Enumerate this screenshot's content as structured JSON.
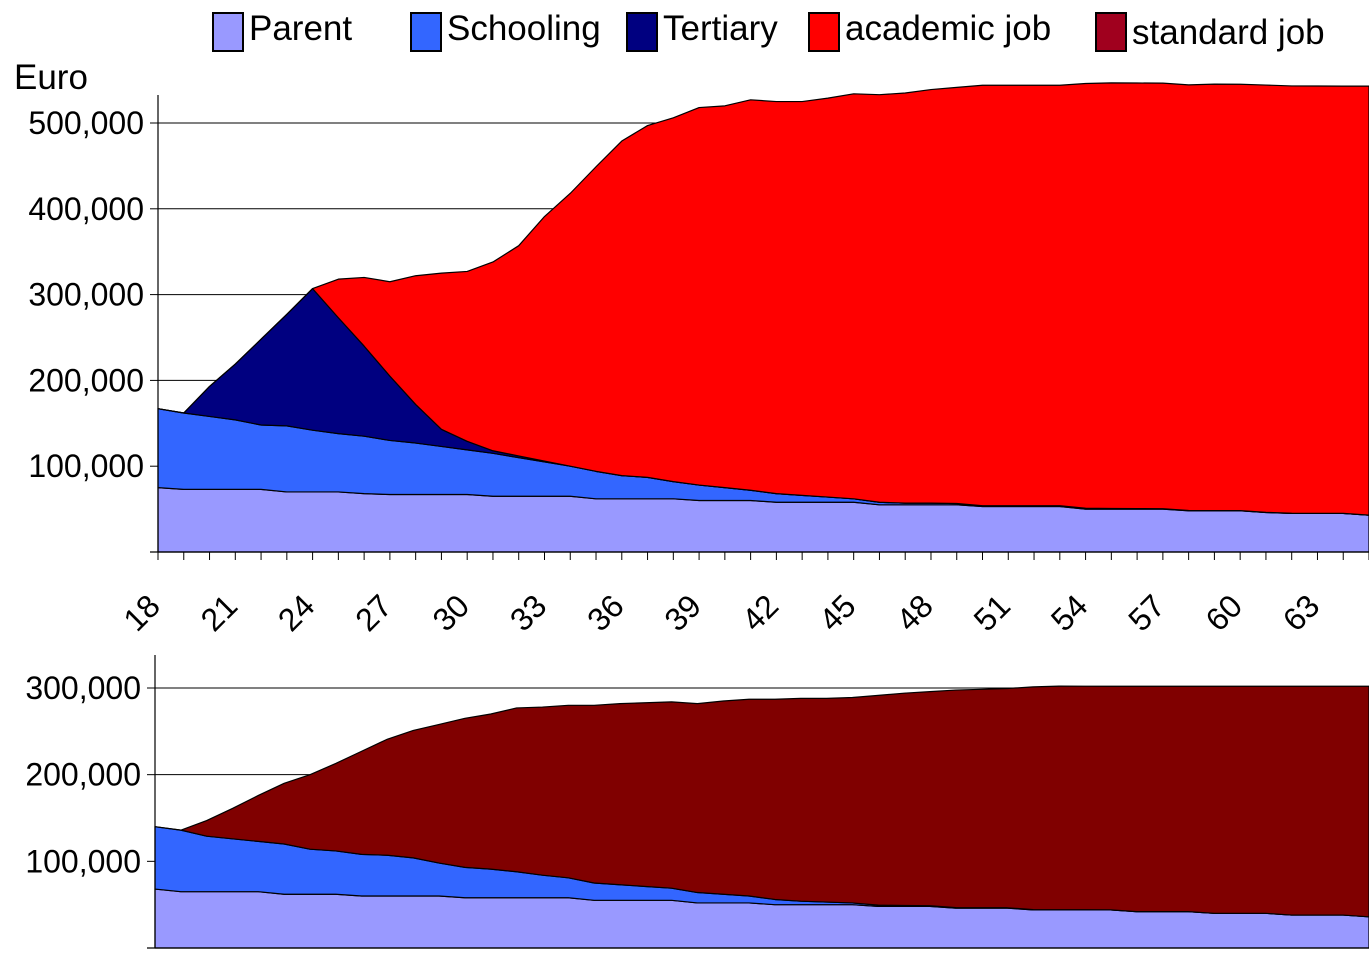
{
  "legend": {
    "parent": "Parent",
    "schooling": "Schooling",
    "tertiary": "Tertiary",
    "academic": "academic job",
    "standard": "standard job"
  },
  "colors": {
    "parent": "#9999ff",
    "schooling": "#3366ff",
    "tertiary": "#000080",
    "academic": "#ff0000",
    "standard": "#800000",
    "standard_legend": "#a0001e"
  },
  "chart_data": [
    {
      "type": "area",
      "stacked": true,
      "ylabel": "Euro",
      "ylim": [
        0,
        500000
      ],
      "yticks": [
        100000,
        200000,
        300000,
        400000,
        500000
      ],
      "ytick_labels": [
        "100,000",
        "200,000",
        "300,000",
        "400,000",
        "500,000"
      ],
      "x": [
        18,
        19,
        20,
        21,
        22,
        23,
        24,
        25,
        26,
        27,
        28,
        29,
        30,
        31,
        32,
        33,
        34,
        35,
        36,
        37,
        38,
        39,
        40,
        41,
        42,
        43,
        44,
        45,
        46,
        47,
        48,
        49,
        50,
        51,
        52,
        53,
        54,
        55,
        56,
        57,
        58,
        59,
        60,
        61,
        62,
        63,
        64,
        65
      ],
      "xtick_labels": [
        "18",
        "21",
        "24",
        "27",
        "30",
        "33",
        "36",
        "39",
        "42",
        "45",
        "48",
        "51",
        "54",
        "57",
        "60",
        "63"
      ],
      "series": [
        {
          "name": "Parent",
          "key": "parent",
          "values": [
            75000,
            73000,
            73000,
            73000,
            73000,
            70000,
            70000,
            70000,
            68000,
            67000,
            67000,
            67000,
            67000,
            65000,
            65000,
            65000,
            65000,
            62000,
            62000,
            62000,
            62000,
            60000,
            60000,
            60000,
            58000,
            58000,
            58000,
            58000,
            55000,
            55000,
            55000,
            55000,
            53000,
            53000,
            53000,
            53000,
            50000,
            50000,
            50000,
            50000,
            48000,
            48000,
            48000,
            46000,
            45000,
            45000,
            45000,
            43000
          ]
        },
        {
          "name": "Schooling",
          "key": "schooling",
          "values": [
            92000,
            89000,
            85000,
            81000,
            75000,
            77000,
            72000,
            68000,
            67000,
            63000,
            60000,
            56000,
            52000,
            50000,
            45000,
            40000,
            35000,
            32000,
            27000,
            25000,
            20000,
            18000,
            15000,
            12000,
            10000,
            8000,
            6000,
            4000,
            3000,
            2000,
            2000,
            1500,
            1000,
            1000,
            1000,
            1000,
            1000,
            800,
            600,
            500,
            400,
            300,
            200,
            200,
            200,
            100,
            0,
            0
          ]
        },
        {
          "name": "Tertiary",
          "key": "tertiary",
          "values": [
            0,
            0,
            35000,
            65000,
            100000,
            130000,
            165000,
            135000,
            105000,
            75000,
            45000,
            20000,
            10000,
            3000,
            2000,
            1000,
            0,
            0,
            0,
            0,
            0,
            0,
            0,
            0,
            0,
            0,
            0,
            0,
            0,
            0,
            0,
            0,
            0,
            0,
            0,
            0,
            0,
            0,
            0,
            0,
            0,
            0,
            0,
            0,
            0,
            0,
            0,
            0
          ]
        },
        {
          "name": "academic job",
          "key": "academic",
          "values": [
            0,
            0,
            0,
            0,
            0,
            0,
            0,
            45000,
            80000,
            110000,
            150000,
            182000,
            198000,
            220000,
            245000,
            285000,
            318000,
            355000,
            390000,
            410000,
            424000,
            440000,
            445000,
            455000,
            457000,
            459000,
            465000,
            472000,
            475000,
            478000,
            482000,
            485000,
            490000,
            490000,
            490000,
            490000,
            495000,
            496000,
            496000,
            496000,
            496000,
            497000,
            497000,
            498000,
            498000,
            498000,
            498000,
            500000
          ]
        }
      ]
    },
    {
      "type": "area",
      "stacked": true,
      "ylim": [
        0,
        300000
      ],
      "yticks": [
        100000,
        200000,
        300000
      ],
      "ytick_labels": [
        "100,000",
        "200,000",
        "300,000"
      ],
      "x": [
        18,
        19,
        20,
        21,
        22,
        23,
        24,
        25,
        26,
        27,
        28,
        29,
        30,
        31,
        32,
        33,
        34,
        35,
        36,
        37,
        38,
        39,
        40,
        41,
        42,
        43,
        44,
        45,
        46,
        47,
        48,
        49,
        50,
        51,
        52,
        53,
        54,
        55,
        56,
        57,
        58,
        59,
        60,
        61,
        62,
        63,
        64,
        65
      ],
      "series": [
        {
          "name": "Parent",
          "key": "parent",
          "values": [
            68000,
            65000,
            65000,
            65000,
            65000,
            62000,
            62000,
            62000,
            60000,
            60000,
            60000,
            60000,
            58000,
            58000,
            58000,
            58000,
            58000,
            55000,
            55000,
            55000,
            55000,
            52000,
            52000,
            52000,
            50000,
            50000,
            50000,
            50000,
            48000,
            48000,
            48000,
            46000,
            46000,
            46000,
            44000,
            44000,
            44000,
            44000,
            42000,
            42000,
            42000,
            40000,
            40000,
            40000,
            38000,
            38000,
            38000,
            36000
          ]
        },
        {
          "name": "Schooling",
          "key": "schooling",
          "values": [
            72000,
            71000,
            64000,
            61000,
            58000,
            58000,
            52000,
            50000,
            48000,
            47000,
            44000,
            38000,
            35000,
            33000,
            30000,
            26000,
            23000,
            20000,
            18000,
            16000,
            14000,
            12000,
            10000,
            8000,
            6000,
            4000,
            3000,
            2000,
            1500,
            1000,
            800,
            600,
            500,
            400,
            300,
            200,
            100,
            0,
            0,
            0,
            0,
            0,
            0,
            0,
            0,
            0,
            0,
            0
          ]
        },
        {
          "name": "standard job",
          "key": "standard",
          "values": [
            0,
            0,
            18000,
            35000,
            53000,
            70000,
            86000,
            101000,
            119000,
            134000,
            147000,
            160000,
            172000,
            179000,
            189000,
            194000,
            199000,
            205000,
            209000,
            212000,
            215000,
            218000,
            223000,
            227000,
            231000,
            234000,
            235000,
            237000,
            242000,
            245000,
            247000,
            251000,
            252000,
            253000,
            257000,
            258000,
            258000,
            258000,
            260000,
            260000,
            260000,
            262000,
            262000,
            262000,
            264000,
            264000,
            264000,
            266000
          ]
        }
      ]
    }
  ]
}
